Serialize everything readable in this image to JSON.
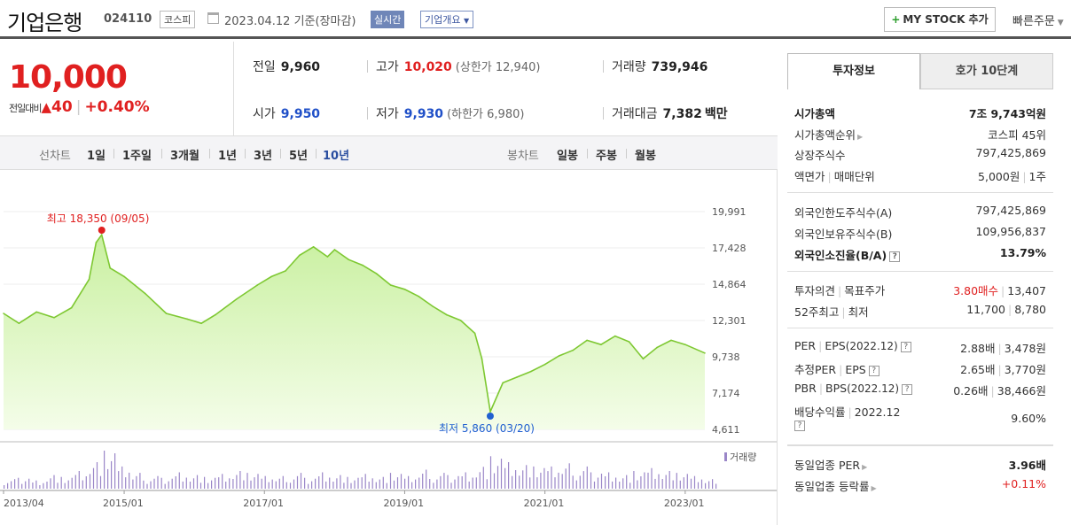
{
  "header": {
    "name": "기업은행",
    "code": "024110",
    "market": "코스피",
    "basis_date": "2023.04.12 기준(장마감)",
    "realtime": "실시간",
    "overview": "기업개요",
    "mystock": "MY STOCK 추가",
    "quick_order": "빠른주문"
  },
  "summary": {
    "price": "10,000",
    "change_label": "전일대비",
    "change_arrow": "▲",
    "change": "40",
    "change_pct": "+0.40%",
    "prev_close_label": "전일",
    "prev_close": "9,960",
    "high_label": "고가",
    "high": "10,020",
    "upper_limit": "(상한가 12,940)",
    "volume_label": "거래량",
    "volume": "739,946",
    "open_label": "시가",
    "open": "9,950",
    "low_label": "저가",
    "low": "9,930",
    "lower_limit": "(하한가 6,980)",
    "amount_label": "거래대금",
    "amount": "7,382",
    "amount_unit": "백만"
  },
  "tabs": {
    "line_label": "선차트",
    "line_periods": [
      "1일",
      "1주일",
      "3개월",
      "1년",
      "3년",
      "5년",
      "10년"
    ],
    "active_period": "10년",
    "candle_label": "봉차트",
    "candle_periods": [
      "일봉",
      "주봉",
      "월봉"
    ]
  },
  "chart_data": {
    "type": "area",
    "ylim": [
      4611,
      19991
    ],
    "yticks": [
      "19,991",
      "17,428",
      "14,864",
      "12,301",
      "9,738",
      "7,174",
      "4,611"
    ],
    "xticks": [
      "2013/04",
      "2015/01",
      "2017/01",
      "2019/01",
      "2021/01",
      "2023/01"
    ],
    "x": [
      2013.28,
      2013.5,
      2013.75,
      2014.0,
      2014.25,
      2014.5,
      2014.6,
      2014.68,
      2014.8,
      2015.0,
      2015.3,
      2015.6,
      2015.9,
      2016.1,
      2016.3,
      2016.6,
      2016.9,
      2017.1,
      2017.3,
      2017.5,
      2017.7,
      2017.9,
      2018.0,
      2018.2,
      2018.4,
      2018.6,
      2018.8,
      2019.0,
      2019.2,
      2019.4,
      2019.6,
      2019.8,
      2020.0,
      2020.1,
      2020.22,
      2020.4,
      2020.6,
      2020.8,
      2021.0,
      2021.2,
      2021.4,
      2021.6,
      2021.8,
      2022.0,
      2022.2,
      2022.4,
      2022.6,
      2022.8,
      2023.0,
      2023.28
    ],
    "values": [
      12800,
      12100,
      12900,
      12500,
      13200,
      15200,
      17800,
      18350,
      16000,
      15400,
      14200,
      12800,
      12400,
      12100,
      12700,
      13800,
      14800,
      15400,
      15800,
      16900,
      17500,
      16800,
      17300,
      16600,
      16200,
      15600,
      14800,
      14500,
      14000,
      13300,
      12700,
      12300,
      11400,
      9600,
      5860,
      7900,
      8300,
      8700,
      9200,
      9800,
      10200,
      10900,
      10600,
      11200,
      10800,
      9600,
      10400,
      10900,
      10600,
      10000
    ],
    "high_label": "최고 18,350 (09/05)",
    "low_label": "최저 5,860 (03/20)",
    "volume_label": "거래량",
    "volume": [
      3,
      4,
      3,
      5,
      4,
      6,
      9,
      12,
      7,
      5,
      4,
      4,
      6,
      5,
      4,
      5,
      6,
      5,
      4,
      4,
      5,
      4,
      6,
      5,
      4,
      5,
      4,
      5,
      4,
      6,
      5,
      5,
      6,
      8,
      11,
      9,
      8,
      7,
      7,
      8,
      7,
      6,
      6,
      5,
      6,
      7,
      6,
      5,
      4,
      3
    ],
    "colors": {
      "line": "#7ec832",
      "fill_top": "#c9f0a0",
      "fill_bottom": "#f4fde9",
      "volume": "#9a86c8",
      "high": "#e02020",
      "low": "#2060d0"
    }
  },
  "panel": {
    "tab_info": "투자정보",
    "tab_orderbook": "호가 10단계",
    "market_cap_label": "시가총액",
    "market_cap": "7조 9,743억원",
    "rank_label": "시가총액순위",
    "rank": "코스피 45위",
    "shares_label": "상장주식수",
    "shares": "797,425,869",
    "face_label": "액면가",
    "lot_label": "매매단위",
    "face_value": "5,000원",
    "lot": "1주",
    "foreign_limit_label": "외국인한도주식수(A)",
    "foreign_limit": "797,425,869",
    "foreign_hold_label": "외국인보유주식수(B)",
    "foreign_hold": "109,956,837",
    "foreign_ratio_label": "외국인소진율(B/A)",
    "foreign_ratio": "13.79%",
    "opinion_label": "투자의견",
    "target_label": "목표주가",
    "opinion": "3.80매수",
    "target": "13,407",
    "w52_label": "52주최고",
    "w52_low_label": "최저",
    "w52_high": "11,700",
    "w52_low": "8,780",
    "per_label": "PER",
    "eps_label": "EPS",
    "eps_year": "(2022.12)",
    "per": "2.88배",
    "eps": "3,478원",
    "est_per_label": "추정PER",
    "est_eps_label": "EPS",
    "est_per": "2.65배",
    "est_eps": "3,770원",
    "pbr_label": "PBR",
    "bps_label": "BPS",
    "bps_year": "(2022.12)",
    "pbr": "0.26배",
    "bps": "38,466원",
    "div_label": "배당수익률",
    "div_year": "2022.12",
    "div": "9.60%",
    "ind_per_label": "동일업종 PER",
    "ind_per": "3.96배",
    "ind_chg_label": "동일업종 등락률",
    "ind_chg": "+0.11%",
    "help": "?"
  }
}
